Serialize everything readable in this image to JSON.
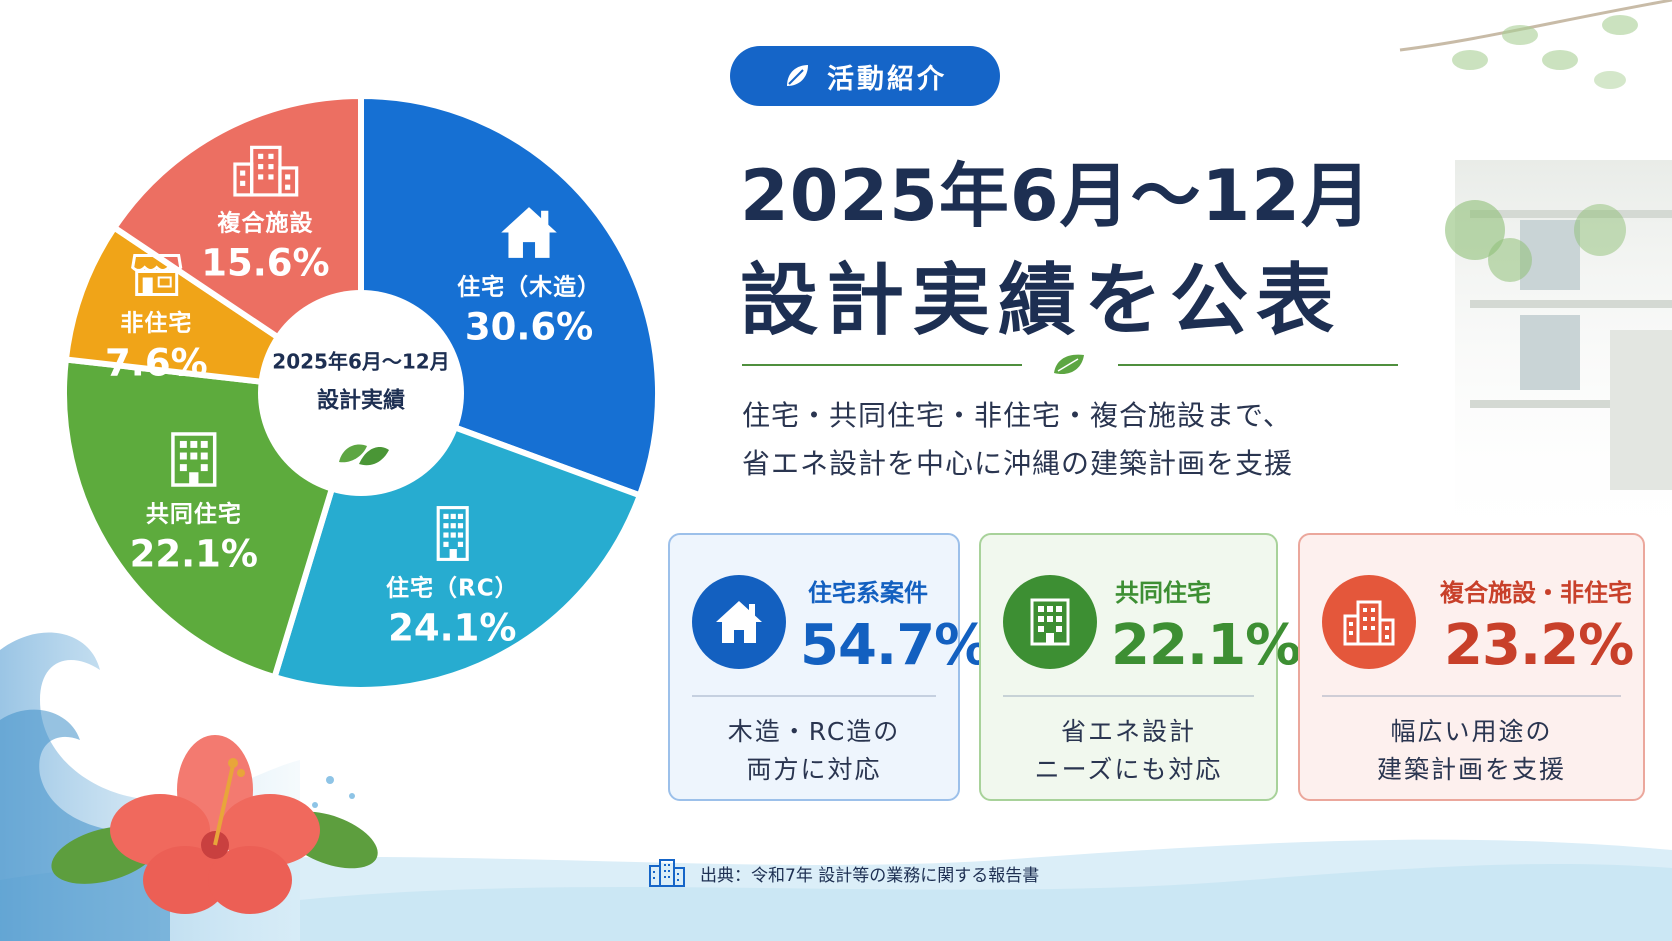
{
  "tag": "活動紹介",
  "headline": {
    "line1": "2025年6月～12月",
    "line2": "設計実績を公表"
  },
  "subtitle": {
    "line1": "住宅・共同住宅・非住宅・複合施設まで、",
    "line2": "省エネ設計を中心に沖縄の建築計画を支援"
  },
  "center": {
    "line1": "2025年6月～12月",
    "line2": "設計実績"
  },
  "chart_data": {
    "type": "pie",
    "unit": "%",
    "start_angle_deg": 0,
    "direction": "clockwise",
    "slices": [
      {
        "name": "住宅（木造）",
        "value": 30.6,
        "label": "30.6%",
        "color": "#1670d3",
        "icon": "house-icon"
      },
      {
        "name": "住宅（RC）",
        "value": 24.1,
        "label": "24.1%",
        "color": "#27acd0",
        "icon": "tower-building-icon"
      },
      {
        "name": "共同住宅",
        "value": 22.1,
        "label": "22.1%",
        "color": "#5dab3d",
        "icon": "apartment-icon"
      },
      {
        "name": "非住宅",
        "value": 7.6,
        "label": "7.6%",
        "color": "#f0a418",
        "icon": "storefront-icon"
      },
      {
        "name": "複合施設",
        "value": 15.6,
        "label": "15.6%",
        "color": "#ec6f62",
        "icon": "office-building-icon"
      }
    ]
  },
  "cards": [
    {
      "title": "住宅系案件",
      "value": "54.7%",
      "desc1": "木造・RC造の",
      "desc2": "両方に対応",
      "icon": "house-icon",
      "color": "#1360c0"
    },
    {
      "title": "共同住宅",
      "value": "22.1%",
      "desc1": "省エネ設計",
      "desc2": "ニーズにも対応",
      "icon": "apartment-icon",
      "color": "#3d8f33"
    },
    {
      "title": "複合施設・非住宅",
      "value": "23.2%",
      "desc1": "幅広い用途の",
      "desc2": "建築計画を支援",
      "icon": "office-building-icon",
      "color": "#c8402a"
    }
  ],
  "source": "出典：令和7年 設計等の業務に関する報告書",
  "icons": {
    "tag": "leaf-icon",
    "divider": "leaf-icon",
    "source": "building-icon"
  }
}
